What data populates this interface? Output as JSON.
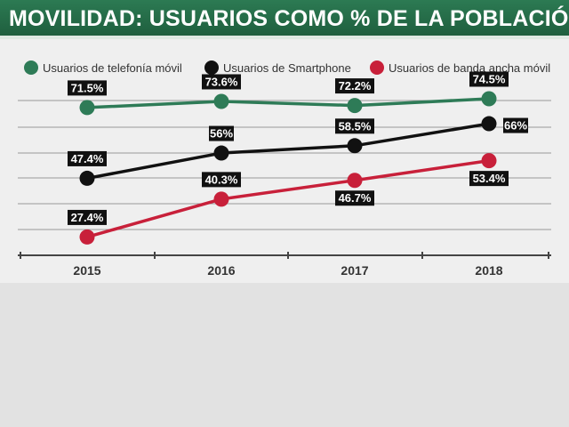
{
  "header": {
    "title": "MOVILIDAD: USUARIOS COMO % DE LA POBLACIÓN"
  },
  "colors": {
    "header_bg": "#1f5f3e",
    "panel_bg": "#efefef",
    "grid": "#9a9a9a",
    "label_bg": "#111111"
  },
  "chart_data": {
    "type": "line",
    "title": "MOVILIDAD: USUARIOS COMO % DE LA POBLACIÓN",
    "xlabel": "",
    "ylabel": "",
    "categories": [
      "2015",
      "2016",
      "2017",
      "2018"
    ],
    "grid": true,
    "legend_position": "top",
    "series": [
      {
        "name": "Usuarios de telefonía móvil",
        "color": "#2e7b57",
        "values": [
          71.5,
          73.6,
          72.2,
          74.5
        ],
        "labels": [
          "71.5%",
          "73.6%",
          "72.2%",
          "74.5%"
        ],
        "label_positions": [
          "above",
          "above",
          "above",
          "above"
        ]
      },
      {
        "name": "Usuarios de Smartphone",
        "color": "#111111",
        "values": [
          47.4,
          56,
          58.5,
          66
        ],
        "labels": [
          "47.4%",
          "56%",
          "58.5%",
          "66%"
        ],
        "label_positions": [
          "above",
          "above",
          "above",
          "right"
        ]
      },
      {
        "name": "Usuarios de banda ancha móvil",
        "color": "#c8203a",
        "values": [
          27.4,
          40.3,
          46.7,
          53.4
        ],
        "labels": [
          "27.4%",
          "40.3%",
          "46.7%",
          "53.4%"
        ],
        "label_positions": [
          "above",
          "above",
          "below",
          "below"
        ]
      }
    ]
  }
}
